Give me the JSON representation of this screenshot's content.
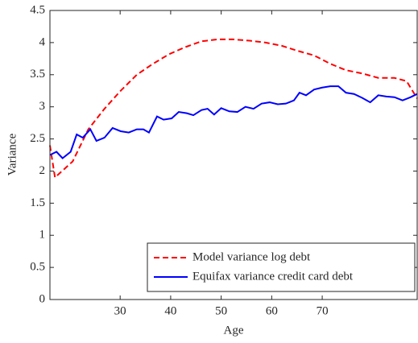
{
  "chart_data": {
    "type": "line",
    "xlabel": "Age",
    "ylabel": "Variance",
    "xlim": [
      16.1,
      88.8
    ],
    "ylim": [
      0,
      4.5
    ],
    "xticks": [
      30,
      40,
      50,
      60,
      70
    ],
    "yticks": [
      0,
      0.5,
      1,
      1.5,
      2,
      2.5,
      3,
      3.5,
      4,
      4.5
    ],
    "legend_position": "lower-right",
    "series": [
      {
        "name": "Model variance log debt",
        "color": "#ff0000",
        "dash": true,
        "x": [
          16.1,
          17.1,
          20.6,
          23.7,
          26.9,
          30.1,
          33.3,
          36.5,
          39.7,
          42.9,
          46.1,
          49.3,
          52.4,
          55.6,
          58.8,
          62.0,
          65.2,
          68.4,
          71.6,
          74.7,
          77.9,
          81.1,
          84.3,
          86.7,
          88.8
        ],
        "values": [
          2.4,
          1.9,
          2.15,
          2.65,
          2.97,
          3.25,
          3.5,
          3.67,
          3.82,
          3.93,
          4.02,
          4.05,
          4.05,
          4.03,
          4.0,
          3.95,
          3.87,
          3.8,
          3.67,
          3.57,
          3.52,
          3.45,
          3.45,
          3.4,
          3.13
        ]
      },
      {
        "name": "Equifax variance credit card debt",
        "color": "#0000ff",
        "dash": false,
        "x": [
          16.1,
          17.4,
          18.6,
          20.2,
          21.4,
          22.6,
          24.1,
          25.3,
          26.9,
          28.5,
          30.1,
          31.7,
          33.3,
          34.6,
          35.7,
          37.3,
          38.6,
          40.2,
          41.6,
          43.2,
          44.5,
          46.1,
          47.3,
          48.6,
          50.0,
          51.6,
          53.2,
          54.8,
          56.4,
          58.0,
          59.6,
          61.2,
          62.8,
          64.4,
          65.5,
          66.8,
          68.4,
          70.0,
          71.6,
          73.2,
          74.7,
          76.3,
          77.9,
          79.5,
          81.1,
          82.7,
          84.3,
          85.9,
          87.5,
          88.8
        ],
        "values": [
          2.25,
          2.3,
          2.2,
          2.3,
          2.57,
          2.52,
          2.65,
          2.47,
          2.52,
          2.67,
          2.62,
          2.6,
          2.65,
          2.65,
          2.6,
          2.85,
          2.8,
          2.82,
          2.92,
          2.9,
          2.87,
          2.95,
          2.97,
          2.88,
          2.98,
          2.93,
          2.92,
          3.0,
          2.97,
          3.05,
          3.07,
          3.04,
          3.05,
          3.1,
          3.22,
          3.18,
          3.27,
          3.3,
          3.32,
          3.32,
          3.22,
          3.2,
          3.14,
          3.07,
          3.18,
          3.16,
          3.15,
          3.1,
          3.15,
          3.2
        ]
      }
    ]
  }
}
